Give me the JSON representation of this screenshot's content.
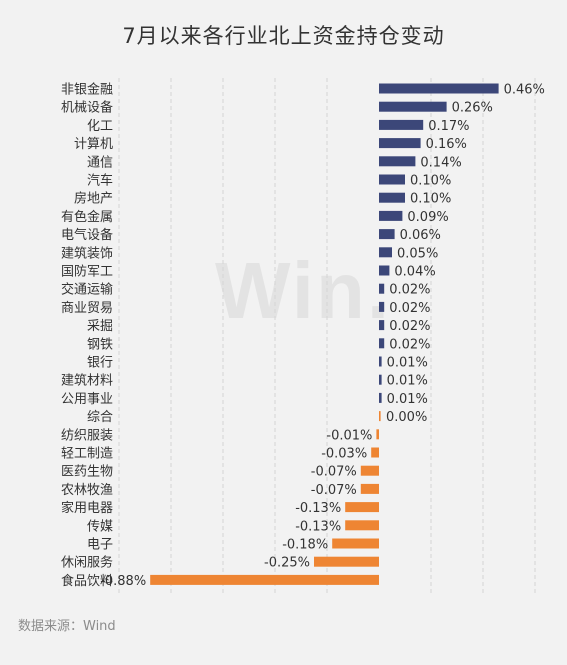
{
  "page": {
    "title": "7月以来各行业北上资金持仓变动",
    "source": "数据来源：Wind",
    "watermark": "Win."
  },
  "chart_data": {
    "type": "bar",
    "orientation": "horizontal",
    "title": "7月以来各行业北上资金持仓变动",
    "xlabel": "",
    "ylabel": "",
    "xlim": [
      -1.0,
      0.6
    ],
    "grid": true,
    "positive_color": "#3c4779",
    "negative_color": "#ee8533",
    "categories": [
      "非银金融",
      "机械设备",
      "化工",
      "计算机",
      "通信",
      "汽车",
      "房地产",
      "有色金属",
      "电气设备",
      "建筑装饰",
      "国防军工",
      "交通运输",
      "商业贸易",
      "采掘",
      "钢铁",
      "银行",
      "建筑材料",
      "公用事业",
      "综合",
      "纺织服装",
      "轻工制造",
      "医药生物",
      "农林牧渔",
      "家用电器",
      "传媒",
      "电子",
      "休闲服务",
      "食品饮料"
    ],
    "values": [
      0.46,
      0.26,
      0.17,
      0.16,
      0.14,
      0.1,
      0.1,
      0.09,
      0.06,
      0.05,
      0.04,
      0.02,
      0.02,
      0.02,
      0.02,
      0.01,
      0.01,
      0.01,
      0.0,
      -0.01,
      -0.03,
      -0.07,
      -0.07,
      -0.13,
      -0.13,
      -0.18,
      -0.25,
      -0.88
    ],
    "value_labels": [
      "0.46%",
      "0.26%",
      "0.17%",
      "0.16%",
      "0.14%",
      "0.10%",
      "0.10%",
      "0.09%",
      "0.06%",
      "0.05%",
      "0.04%",
      "0.02%",
      "0.02%",
      "0.02%",
      "0.02%",
      "0.01%",
      "0.01%",
      "0.01%",
      "0.00%",
      "-0.01%",
      "-0.03%",
      "-0.07%",
      "-0.07%",
      "-0.13%",
      "-0.13%",
      "-0.18%",
      "-0.25%",
      "-0.88%"
    ]
  }
}
